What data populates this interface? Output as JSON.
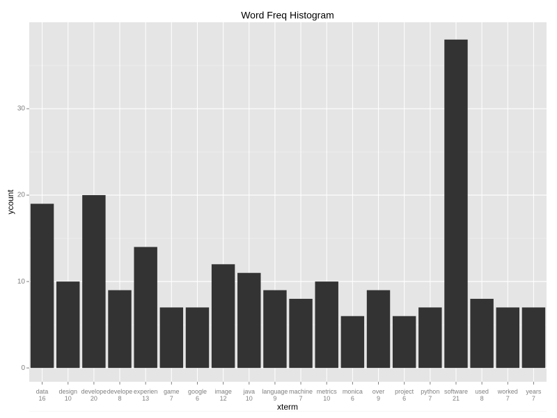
{
  "chart_data": {
    "type": "bar",
    "title": "Word Freq Histogram",
    "x_label": "xterm",
    "y_label": "ycount",
    "categories": [
      "data\n16",
      "design\n10",
      "develope\n20",
      "develope\n8",
      "experien\n13",
      "game\n7",
      "google\n6",
      "image\n12",
      "java\n10",
      "language\n9",
      "machine\n7",
      "metrics\n10",
      "monica\n6",
      "over\n9",
      "project\n6",
      "python\n7",
      "software\n21",
      "used\n8",
      "worked\n7",
      "years\n7"
    ],
    "values": [
      19,
      10,
      20,
      9,
      14,
      7,
      7,
      12,
      11,
      9,
      8,
      10,
      6,
      9,
      6,
      7,
      38,
      8,
      7,
      7
    ],
    "color": "#333333",
    "ylim": [
      -1.6,
      40
    ],
    "yticks": [
      0,
      10,
      20,
      30
    ],
    "grid": true
  }
}
